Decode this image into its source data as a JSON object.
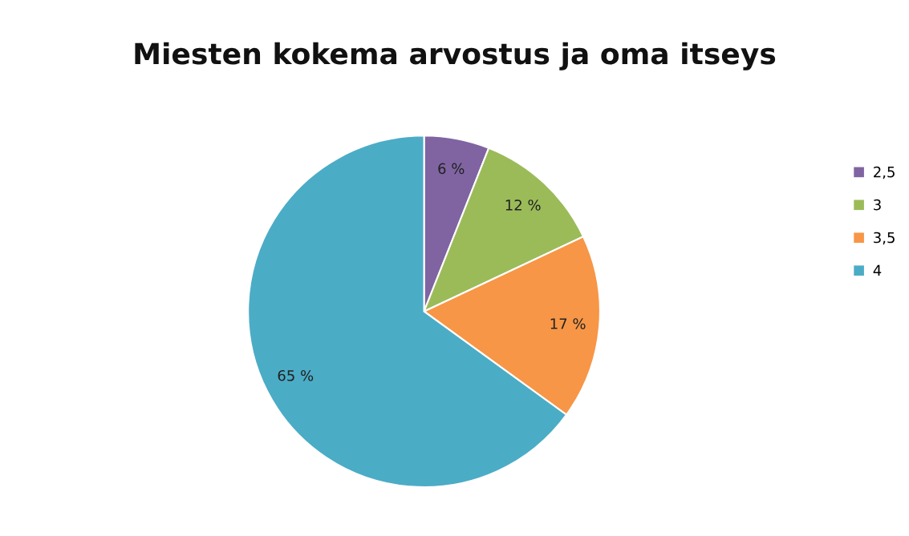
{
  "chart_data": {
    "type": "pie",
    "title": "Miesten kokema arvostus ja oma itseys",
    "categories": [
      "2,5",
      "3",
      "3,5",
      "4"
    ],
    "values": [
      6,
      12,
      17,
      65
    ],
    "value_labels": [
      "6 %",
      "12 %",
      "17 %",
      "65 %"
    ],
    "colors": [
      "#8064a2",
      "#9bbb59",
      "#f79646",
      "#4bacc6"
    ],
    "legend": "right"
  }
}
